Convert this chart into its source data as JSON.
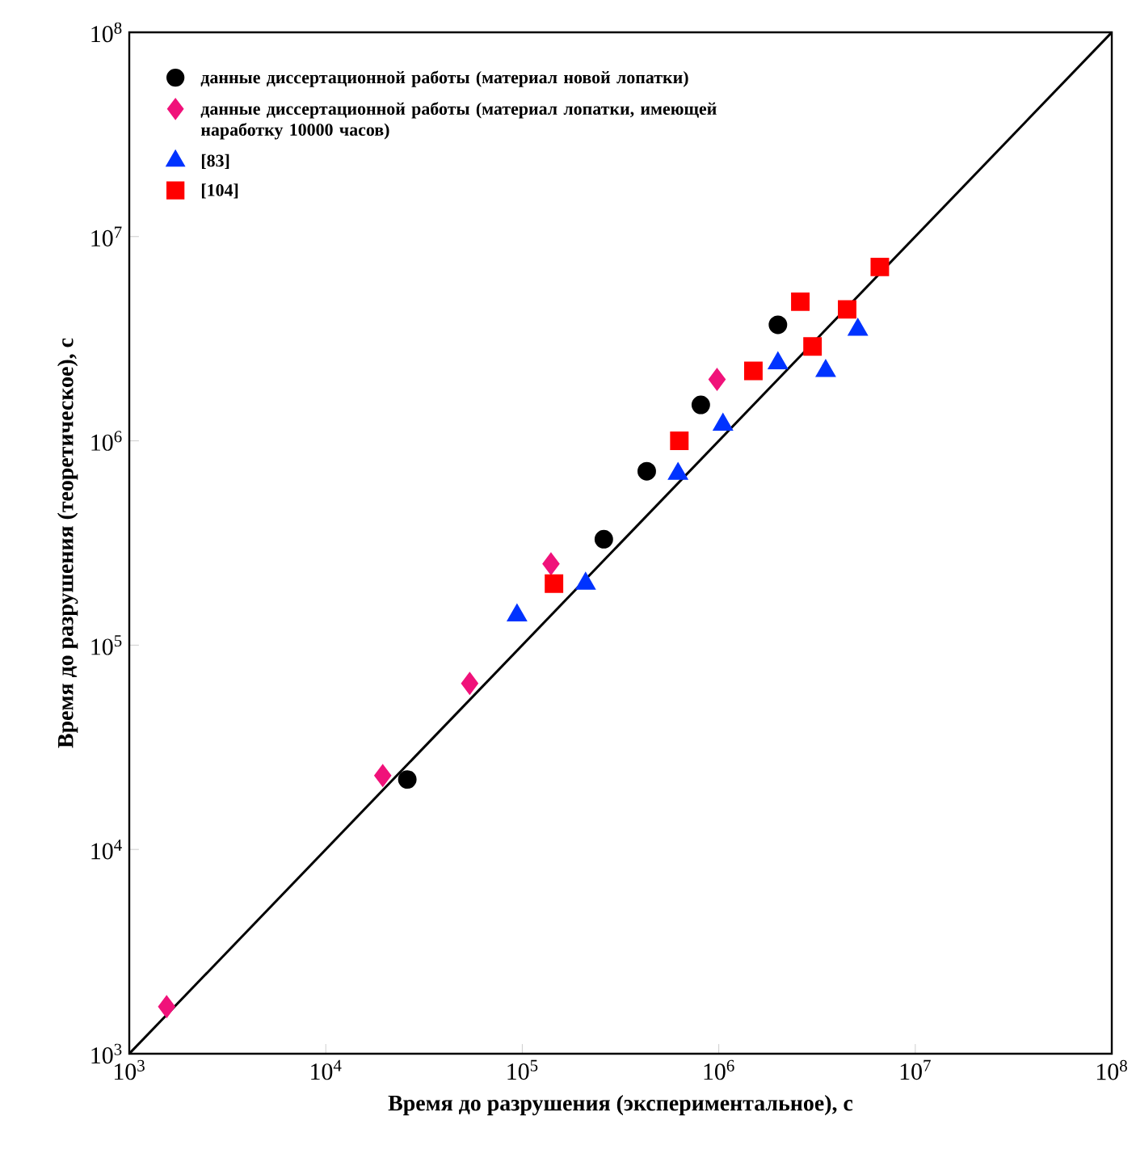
{
  "chart_data": {
    "type": "scatter",
    "xlabel": "Время до разрушения (экспериментальное), с",
    "ylabel": "Время до разрушения (теоретическое), с",
    "log": "xy",
    "xlim": [
      1000,
      100000000
    ],
    "ylim": [
      1000,
      100000000
    ],
    "xticks": [
      {
        "value": 1000,
        "label": "10$^{3}$"
      },
      {
        "value": 10000,
        "label": "10$^{4}$"
      },
      {
        "value": 100000,
        "label": "10$^{5}$"
      },
      {
        "value": 1000000,
        "label": "10$^{6}$"
      },
      {
        "value": 10000000,
        "label": "10$^{7}$"
      },
      {
        "value": 100000000,
        "label": "10$^{8}$"
      }
    ],
    "yticks": [
      {
        "value": 1000,
        "label": "10$^{3}$"
      },
      {
        "value": 10000,
        "label": "10$^{4}$"
      },
      {
        "value": 100000,
        "label": "10$^{5}$"
      },
      {
        "value": 1000000,
        "label": "10$^{6}$"
      },
      {
        "value": 10000000,
        "label": "10$^{7}$"
      },
      {
        "value": 100000000,
        "label": "10$^{8}$"
      }
    ],
    "grid": false,
    "legend": "top left",
    "series": [
      {
        "name": "данные диссертационной работы (материал новой лопатки)",
        "color": "#000000",
        "marker": "circle",
        "x": [
          26000,
          260000,
          430000,
          810000,
          2000000
        ],
        "values": [
          22000,
          330000,
          710000,
          1500000,
          3700000
        ]
      },
      {
        "name": "данные диссертационной работы (материал лопатки, имеющей наработку 10000 часов)",
        "color": "#f0127a",
        "marker": "diamond",
        "x": [
          1550,
          19500,
          54000,
          140000,
          980000
        ],
        "values": [
          1700,
          23000,
          65000,
          250000,
          2000000
        ]
      },
      {
        "name": "[83]",
        "color": "#0033ff",
        "marker": "triangle",
        "x": [
          94000,
          210000,
          620000,
          1050000,
          2000000,
          3500000,
          5100000
        ],
        "values": [
          140000,
          200000,
          690000,
          1200000,
          2400000,
          2200000,
          3500000
        ]
      },
      {
        "name": "[104]",
        "color": "#ff0000",
        "marker": "square",
        "x": [
          145000,
          630000,
          1500000,
          3000000,
          2600000,
          4500000,
          6600000
        ],
        "values": [
          200000,
          1000000,
          2200000,
          2900000,
          4800000,
          4400000,
          7100000
        ]
      },
      {
        "type": "line",
        "color": "#000000",
        "marker": "none",
        "line_style": "solid",
        "x": [
          1000,
          100000000
        ],
        "values": [
          1000,
          100000000
        ]
      }
    ]
  }
}
